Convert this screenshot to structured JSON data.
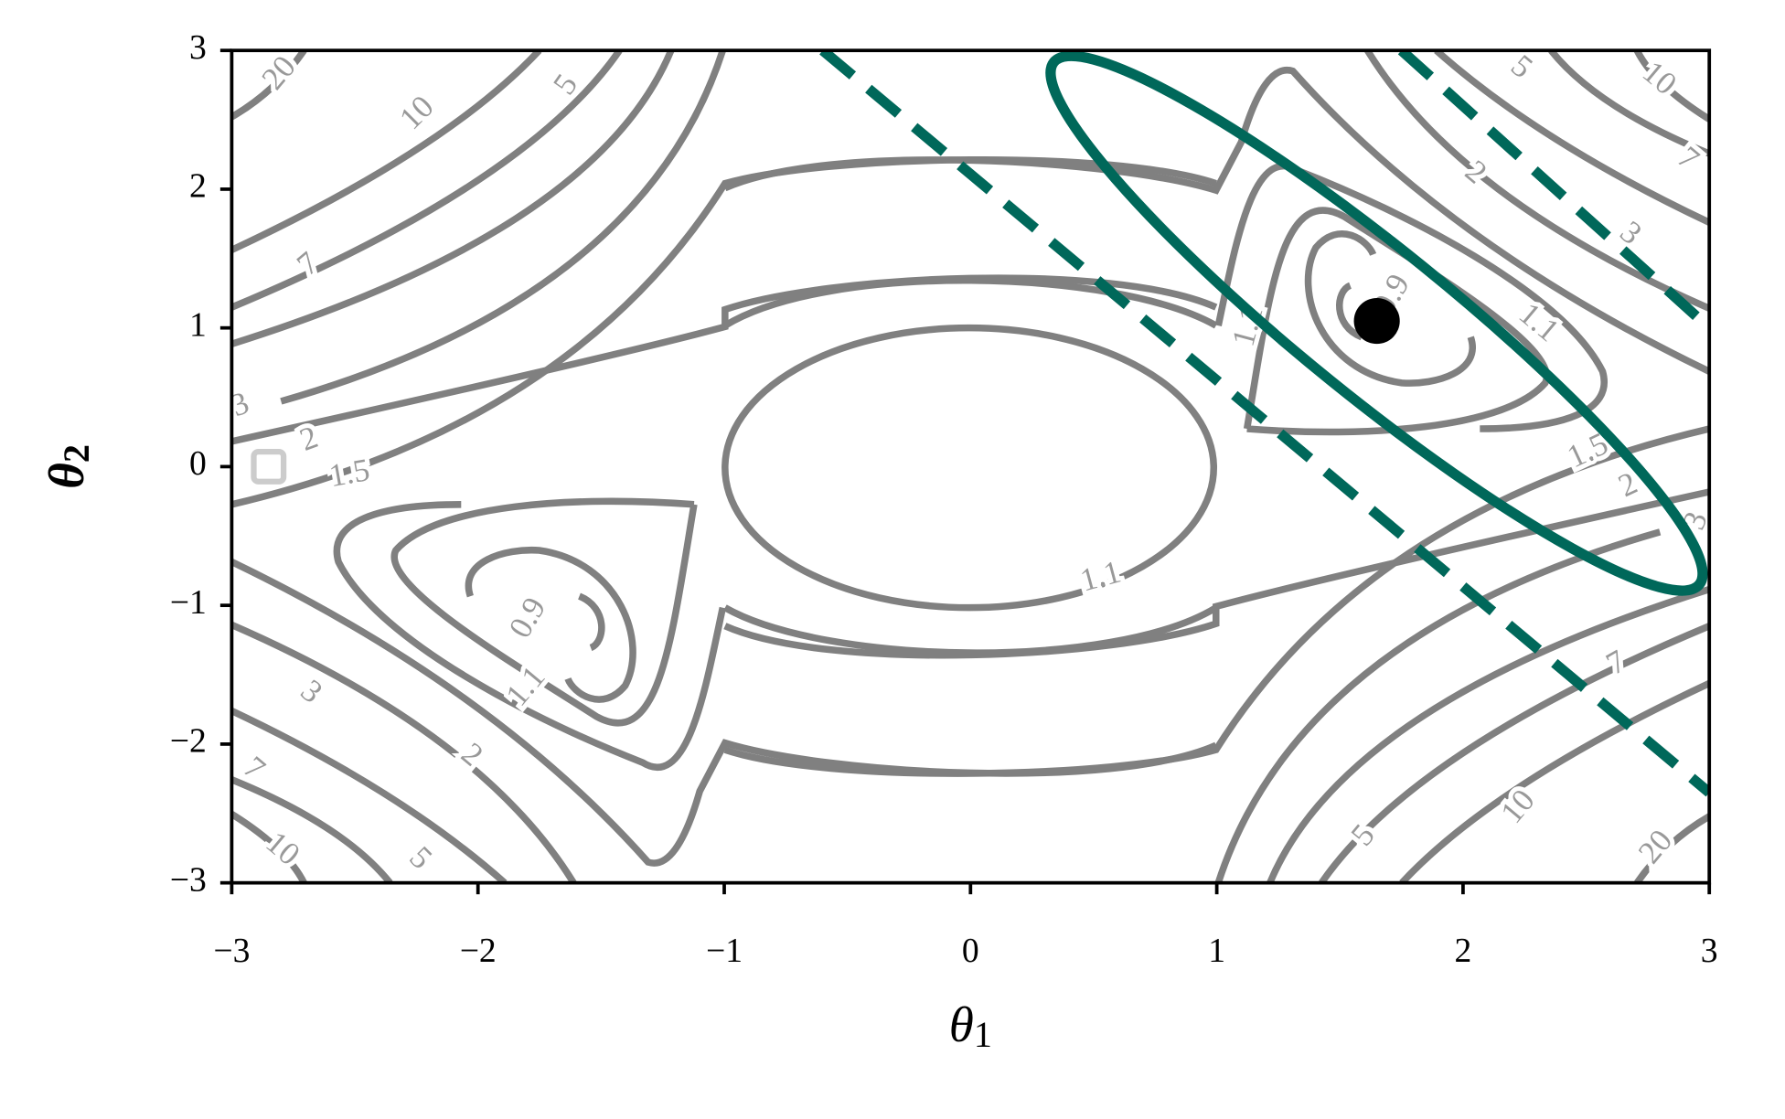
{
  "chart_data": {
    "type": "contour",
    "xlabel": {
      "symbol": "θ",
      "subscript": "1"
    },
    "ylabel": {
      "symbol": "θ",
      "subscript": "2"
    },
    "xlim": [
      -3,
      3
    ],
    "ylim": [
      -3,
      3
    ],
    "xticks": [
      {
        "value": -3,
        "label": "−3"
      },
      {
        "value": -2,
        "label": "−2"
      },
      {
        "value": -1,
        "label": "−1"
      },
      0,
      1,
      2,
      3
    ],
    "yticks": [
      {
        "value": -3,
        "label": "−3"
      },
      {
        "value": -2,
        "label": "−2"
      },
      {
        "value": -1,
        "label": "−1"
      },
      0,
      1,
      2,
      3
    ],
    "levels": [
      0.9,
      1.1,
      1.5,
      2,
      3,
      5,
      7,
      10,
      20
    ],
    "contour_color": "#808080",
    "lines": [
      {
        "x": [
          -0.6,
          3
        ],
        "y": [
          3,
          -2.35
        ],
        "color": "#00685a",
        "style": "dashed"
      },
      {
        "x": [
          1.75,
          3
        ],
        "y": [
          3,
          1.0
        ],
        "color": "#00685a",
        "style": "dashed"
      }
    ],
    "points": [
      {
        "x": 1.65,
        "y": 1.05,
        "color": "#000000",
        "marker": "circle"
      },
      {
        "x": -2.85,
        "y": 0,
        "color": "#cccccc",
        "marker": "square"
      }
    ]
  }
}
